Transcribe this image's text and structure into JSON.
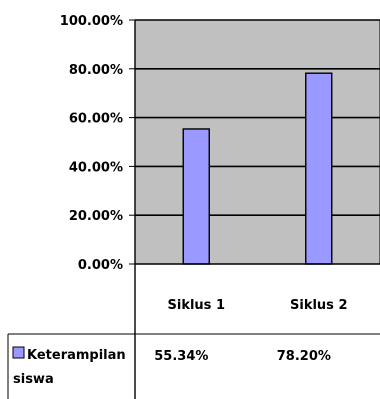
{
  "chart_data": {
    "type": "bar",
    "categories": [
      "Siklus 1",
      "Siklus 2"
    ],
    "series": [
      {
        "name": "Keterampilan siswa",
        "values": [
          55.34,
          78.2
        ],
        "labels": [
          "55.34%",
          "78.20%"
        ]
      }
    ],
    "series_label_lines": [
      "Keterampilan",
      "siswa"
    ],
    "ylim": [
      0,
      100
    ],
    "yticks": [
      "0.00%",
      "20.00%",
      "40.00%",
      "60.00%",
      "80.00%",
      "100.00%"
    ],
    "grid": true,
    "data_table": true,
    "legend": "data-table",
    "colors": {
      "bar": "#9999ff",
      "plot_background": "#c0c0c0"
    }
  }
}
